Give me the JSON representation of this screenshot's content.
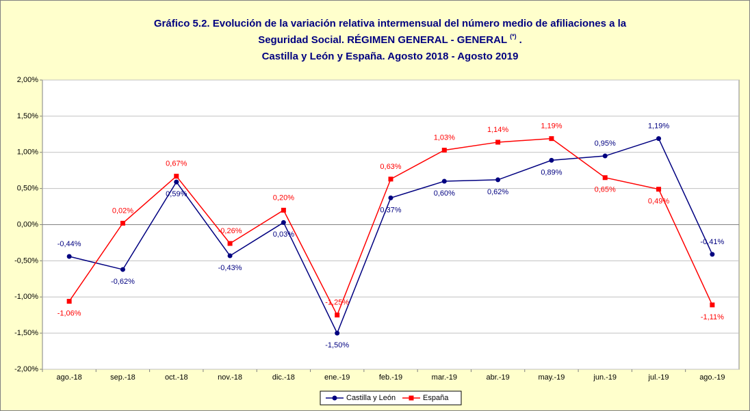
{
  "chart_data": {
    "type": "line",
    "title": [
      "Gráfico 5.2. Evolución de la variación relativa intermensual del número medio de afiliaciones a la",
      "Seguridad Social. RÉGIMEN GENERAL - GENERAL",
      "Castilla y León y España. Agosto 2018 - Agosto 2019"
    ],
    "title_note": "(*)",
    "title_end": ".",
    "categories": [
      "ago.-18",
      "sep.-18",
      "oct.-18",
      "nov.-18",
      "dic.-18",
      "ene.-19",
      "feb.-19",
      "mar.-19",
      "abr.-19",
      "may.-19",
      "jun.-19",
      "jul.-19",
      "ago.-19"
    ],
    "series": [
      {
        "name": "Castilla y León",
        "color": "#000080",
        "values": [
          -0.44,
          -0.62,
          0.59,
          -0.43,
          0.03,
          -1.5,
          0.37,
          0.6,
          0.62,
          0.89,
          0.95,
          1.19,
          -0.41
        ],
        "value_labels": [
          "-0,44%",
          "-0,62%",
          "0,59%",
          "-0,43%",
          "0,03%",
          "-1,50%",
          "0,37%",
          "0,60%",
          "0,62%",
          "0,89%",
          "0,95%",
          "1,19%",
          "-0,41%"
        ]
      },
      {
        "name": "España",
        "color": "#ff0000",
        "values": [
          -1.06,
          0.02,
          0.67,
          -0.26,
          0.2,
          -1.25,
          0.63,
          1.03,
          1.14,
          1.19,
          0.65,
          0.49,
          -1.11
        ],
        "value_labels": [
          "-1,06%",
          "0,02%",
          "0,67%",
          "-0,26%",
          "0,20%",
          "-1,25%",
          "0,63%",
          "1,03%",
          "1,14%",
          "1,19%",
          "0,65%",
          "0,49%",
          "-1,11%"
        ]
      }
    ],
    "ylim": [
      -2,
      2
    ],
    "yticks": [
      {
        "value": -2,
        "label": "-2,00%"
      },
      {
        "value": -1.5,
        "label": "-1,50%"
      },
      {
        "value": -1,
        "label": "-1,00%"
      },
      {
        "value": -0.5,
        "label": "-0,50%"
      },
      {
        "value": 0,
        "label": "0,00%"
      },
      {
        "value": 0.5,
        "label": "0,50%"
      },
      {
        "value": 1,
        "label": "1,00%"
      },
      {
        "value": 1.5,
        "label": "1,50%"
      },
      {
        "value": 2,
        "label": "2,00%"
      }
    ],
    "grid": true,
    "legend": "bottom"
  }
}
